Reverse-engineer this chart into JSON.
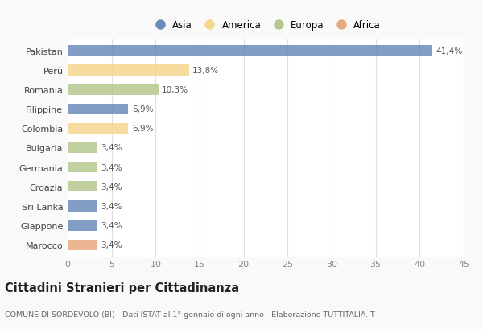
{
  "categories": [
    "Pakistan",
    "Perù",
    "Romania",
    "Filippine",
    "Colombia",
    "Bulgaria",
    "Germania",
    "Croazia",
    "Sri Lanka",
    "Giappone",
    "Marocco"
  ],
  "values": [
    41.4,
    13.8,
    10.3,
    6.9,
    6.9,
    3.4,
    3.4,
    3.4,
    3.4,
    3.4,
    3.4
  ],
  "colors": [
    "#6b8cba",
    "#f5d78e",
    "#b5c98e",
    "#6b8cba",
    "#f5d78e",
    "#b5c98e",
    "#b5c98e",
    "#b5c98e",
    "#6b8cba",
    "#6b8cba",
    "#e8a97e"
  ],
  "labels": [
    "41,4%",
    "13,8%",
    "10,3%",
    "6,9%",
    "6,9%",
    "3,4%",
    "3,4%",
    "3,4%",
    "3,4%",
    "3,4%",
    "3,4%"
  ],
  "legend_labels": [
    "Asia",
    "America",
    "Europa",
    "Africa"
  ],
  "legend_colors": [
    "#6b8cba",
    "#f5d78e",
    "#b5c98e",
    "#e8a97e"
  ],
  "title": "Cittadini Stranieri per Cittadinanza",
  "subtitle": "COMUNE DI SORDEVOLO (BI) - Dati ISTAT al 1° gennaio di ogni anno - Elaborazione TUTTITALIA.IT",
  "xlim": [
    0,
    45
  ],
  "xticks": [
    0,
    5,
    10,
    15,
    20,
    25,
    30,
    35,
    40,
    45
  ],
  "bg_color": "#f9f9f9",
  "plot_bg": "#ffffff",
  "grid_color": "#e0e0e0",
  "bar_height": 0.55,
  "label_fontsize": 7.5,
  "ytick_fontsize": 8,
  "xtick_fontsize": 8,
  "legend_fontsize": 8.5,
  "title_fontsize": 10.5,
  "subtitle_fontsize": 6.8
}
